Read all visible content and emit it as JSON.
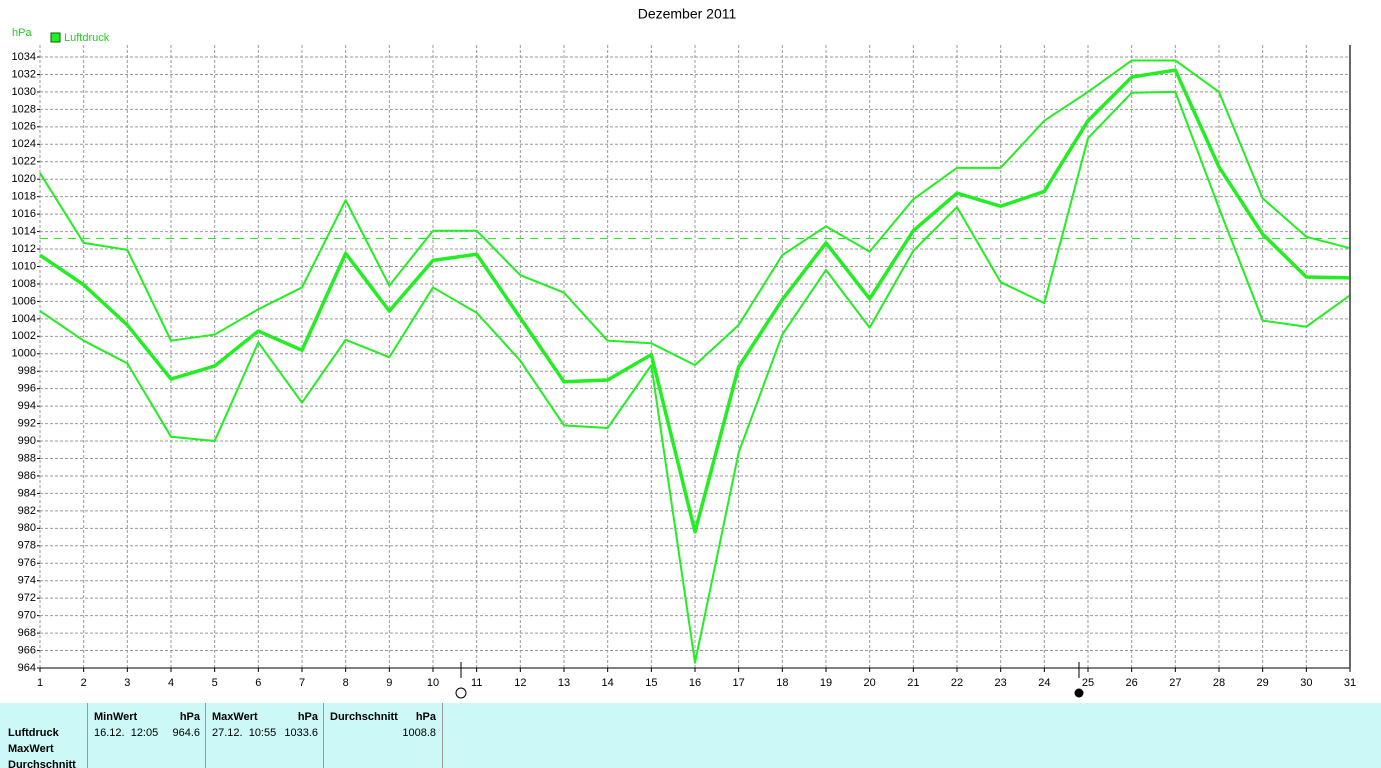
{
  "chart_data": {
    "type": "line",
    "title": "Dezember 2011",
    "y_unit": "hPa",
    "x": [
      1,
      2,
      3,
      4,
      5,
      6,
      7,
      8,
      9,
      10,
      11,
      12,
      13,
      14,
      15,
      16,
      17,
      18,
      19,
      20,
      21,
      22,
      23,
      24,
      25,
      26,
      27,
      28,
      29,
      30,
      31
    ],
    "series": [
      {
        "name": "Luftdruck",
        "color": "#22ee22",
        "values": [
          1011.3,
          1007.9,
          1003.3,
          997.1,
          998.6,
          1002.6,
          1000.4,
          1011.5,
          1004.9,
          1010.7,
          1011.4,
          1004.1,
          996.8,
          997.0,
          999.9,
          979.6,
          998.5,
          1006.2,
          1012.7,
          1006.3,
          1014.1,
          1018.4,
          1016.9,
          1018.6,
          1026.7,
          1031.7,
          1032.5,
          1021.4,
          1013.7,
          1008.8,
          1008.7
        ]
      },
      {
        "color": "#22ee22",
        "values": [
          1020.7,
          1012.7,
          1011.9,
          1001.5,
          1002.2,
          1005.1,
          1007.6,
          1017.6,
          1007.8,
          1014.1,
          1014.1,
          1009.0,
          1007.0,
          1001.5,
          1001.2,
          998.7,
          1003.3,
          1011.3,
          1014.6,
          1011.7,
          1017.7,
          1021.3,
          1021.3,
          1026.7,
          1030.0,
          1033.6,
          1033.6,
          1030.0,
          1017.8,
          1013.4,
          1012.1
        ]
      },
      {
        "color": "#22ee22",
        "values": [
          1004.9,
          1001.5,
          998.9,
          990.5,
          990.0,
          1001.3,
          994.4,
          1001.6,
          999.6,
          1007.6,
          1004.7,
          999.2,
          991.8,
          991.5,
          998.7,
          964.6,
          988.7,
          1002.2,
          1009.6,
          1003.0,
          1011.8,
          1016.8,
          1008.2,
          1005.8,
          1024.7,
          1029.9,
          1030.0,
          1016.7,
          1003.8,
          1003.1,
          1006.7
        ]
      }
    ],
    "reference_line": 1013.2,
    "xlim": [
      1,
      31
    ],
    "xticks": [
      1,
      2,
      3,
      4,
      5,
      6,
      7,
      8,
      9,
      10,
      11,
      12,
      13,
      14,
      15,
      16,
      17,
      18,
      19,
      20,
      21,
      22,
      23,
      24,
      25,
      26,
      27,
      28,
      29,
      30,
      31
    ],
    "ylim": [
      964,
      1034
    ],
    "yticks": [
      964,
      966,
      968,
      970,
      972,
      974,
      976,
      978,
      980,
      982,
      984,
      986,
      988,
      990,
      992,
      994,
      996,
      998,
      1000,
      1002,
      1004,
      1006,
      1008,
      1010,
      1012,
      1014,
      1016,
      1018,
      1020,
      1022,
      1024,
      1026,
      1028,
      1030,
      1032,
      1034
    ],
    "grid": true
  },
  "table": {
    "row_labels": [
      "Luftdruck",
      "MaxWert",
      "Durchschnitt"
    ],
    "columns": [
      {
        "header": "MinWert",
        "unit": "hPa",
        "time": "16.12.  12:05",
        "value": "964.6"
      },
      {
        "header": "MaxWert",
        "unit": "hPa",
        "time": "27.12.  10:55",
        "value": "1033.6"
      },
      {
        "header": "Durchschnitt",
        "unit": "hPa",
        "value": "1008.8"
      }
    ]
  }
}
